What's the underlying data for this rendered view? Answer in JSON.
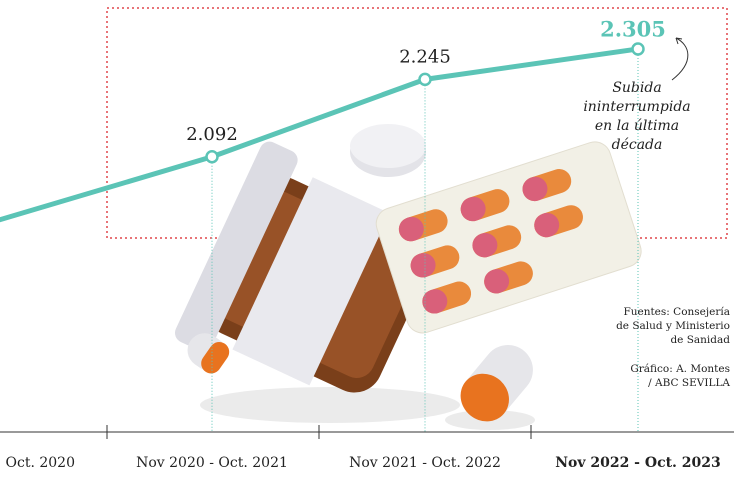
{
  "chart_data": {
    "type": "line",
    "categories": [
      "Oct. 2020",
      "Nov 2020 - Oct. 2021",
      "Nov 2021 - Oct. 2022",
      "Nov 2022 - Oct. 2023"
    ],
    "values": [
      1967,
      2092,
      2245,
      2305
    ],
    "value_labels": [
      null,
      "2.092",
      "2.245",
      "2.305"
    ],
    "color": "#5bc4b6",
    "annotation": [
      "Subida",
      "ininterrumpida",
      "en la última",
      "década"
    ],
    "sources": [
      "Fuentes: Consejería",
      "de Salud y Ministerio",
      "de Sanidad"
    ],
    "credit": [
      "Gráfico: A. Montes",
      "/ ABC SEVILLA"
    ]
  }
}
